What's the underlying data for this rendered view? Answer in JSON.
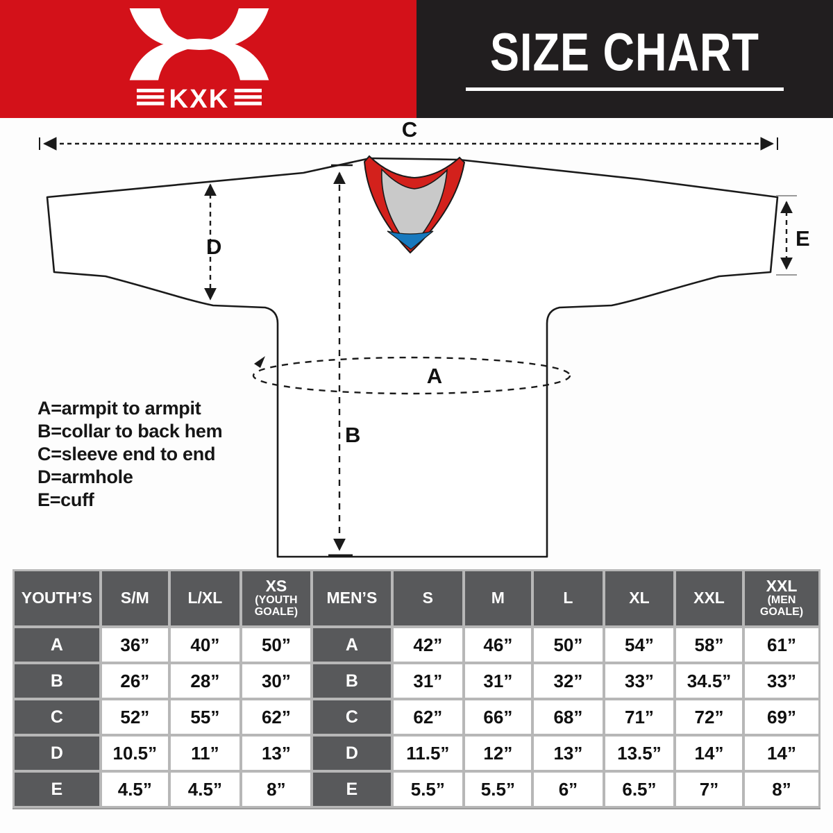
{
  "brand": {
    "logo_text": "KXK",
    "logo_mark": "x-wings-monogram"
  },
  "header": {
    "title": "SIZE CHART"
  },
  "diagram": {
    "dim_a": "A",
    "dim_b": "B",
    "dim_c": "C",
    "dim_d": "D",
    "dim_e": "E",
    "legend": [
      "A=armpit to armpit",
      "B=collar to back hem",
      "C=sleeve end to end",
      "D=armhole",
      "E=cuff"
    ],
    "colors": {
      "collar_trim": "#d3211c",
      "collar_inner": "#c9c9c9",
      "collar_insert": "#1779be",
      "outline": "#1a1a1a"
    }
  },
  "theme": {
    "brand_red": "#d31119",
    "header_black": "#211e1f",
    "cell_gray": "#58595b",
    "grid_gray": "#b7b7b7"
  },
  "size_table": {
    "columns": [
      {
        "label": "YOUTH’S",
        "sub": ""
      },
      {
        "label": "S/M",
        "sub": ""
      },
      {
        "label": "L/XL",
        "sub": ""
      },
      {
        "label": "XS",
        "sub": "(YOUTH GOALE)"
      },
      {
        "label": "MEN’S",
        "sub": ""
      },
      {
        "label": "S",
        "sub": ""
      },
      {
        "label": "M",
        "sub": ""
      },
      {
        "label": "L",
        "sub": ""
      },
      {
        "label": "XL",
        "sub": ""
      },
      {
        "label": "XXL",
        "sub": ""
      },
      {
        "label": "XXL",
        "sub": "(MEN GOALE)"
      }
    ],
    "rows": [
      {
        "cells": [
          "A",
          "36”",
          "40”",
          "50”",
          "A",
          "42”",
          "46”",
          "50”",
          "54”",
          "58”",
          "61”"
        ]
      },
      {
        "cells": [
          "B",
          "26”",
          "28”",
          "30”",
          "B",
          "31”",
          "31”",
          "32”",
          "33”",
          "34.5”",
          "33”"
        ]
      },
      {
        "cells": [
          "C",
          "52”",
          "55”",
          "62”",
          "C",
          "62”",
          "66”",
          "68”",
          "71”",
          "72”",
          "69”"
        ]
      },
      {
        "cells": [
          "D",
          "10.5”",
          "11”",
          "13”",
          "D",
          "11.5”",
          "12”",
          "13”",
          "13.5”",
          "14”",
          "14”"
        ]
      },
      {
        "cells": [
          "E",
          "4.5”",
          "4.5”",
          "8”",
          "E",
          "5.5”",
          "5.5”",
          "6”",
          "6.5”",
          "7”",
          "8”"
        ]
      }
    ]
  }
}
